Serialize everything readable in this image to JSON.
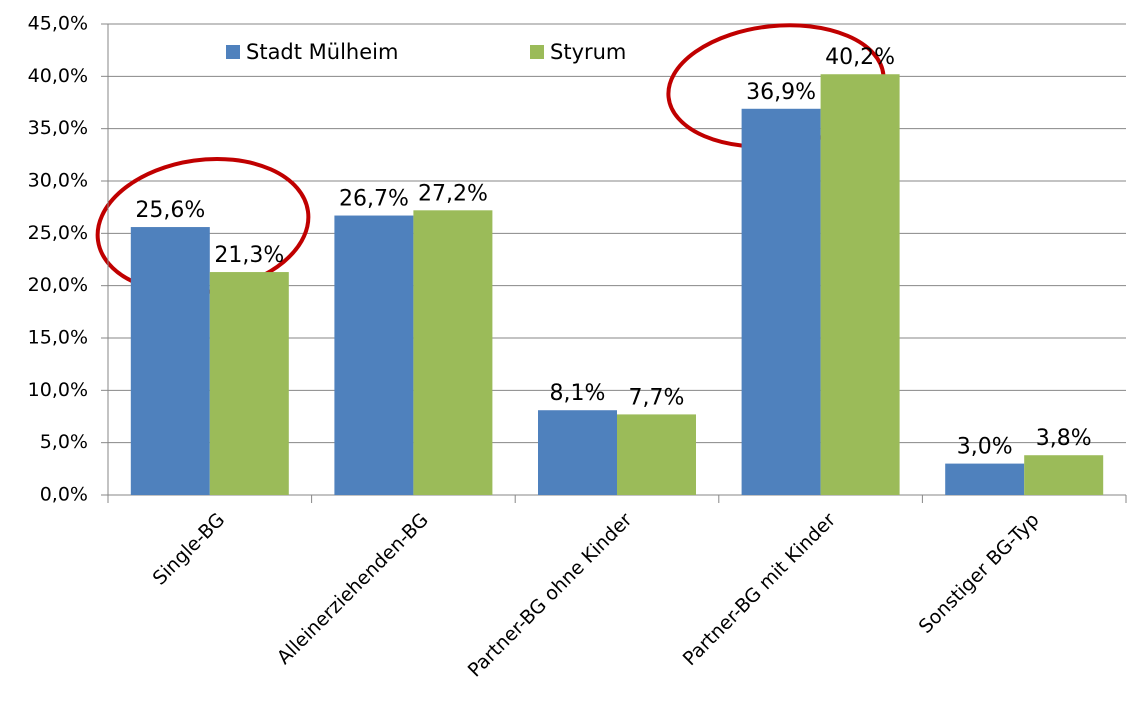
{
  "chart_data": {
    "type": "bar",
    "categories": [
      "Single-BG",
      "Alleinerziehenden-BG",
      "Partner-BG ohne Kinder",
      "Partner-BG mit Kinder",
      "Sonstiger BG-Typ"
    ],
    "series": [
      {
        "name": "Stadt Mülheim",
        "color": "#4f81bd",
        "values": [
          25.6,
          26.7,
          8.1,
          36.9,
          3.0
        ],
        "value_labels": [
          "25,6%",
          "26,7%",
          "8,1%",
          "36,9%",
          "3,0%"
        ]
      },
      {
        "name": "Styrum",
        "color": "#9bbb59",
        "values": [
          21.3,
          27.2,
          7.7,
          40.2,
          3.8
        ],
        "value_labels": [
          "21,3%",
          "27,2%",
          "7,7%",
          "40,2%",
          "3,8%"
        ]
      }
    ],
    "ylim": [
      0,
      45
    ],
    "yticks": [
      {
        "value": 0,
        "label": "0,0%"
      },
      {
        "value": 5,
        "label": "5,0%"
      },
      {
        "value": 10,
        "label": "10,0%"
      },
      {
        "value": 15,
        "label": "15,0%"
      },
      {
        "value": 20,
        "label": "20,0%"
      },
      {
        "value": 25,
        "label": "25,0%"
      },
      {
        "value": 30,
        "label": "30,0%"
      },
      {
        "value": 35,
        "label": "35,0%"
      },
      {
        "value": 40,
        "label": "40,0%"
      },
      {
        "value": 45,
        "label": "45,0%"
      }
    ],
    "grid": true,
    "legend": "top"
  }
}
